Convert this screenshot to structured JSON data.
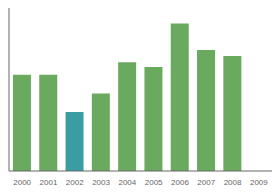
{
  "chart_data": {
    "type": "bar",
    "categories": [
      "2000",
      "2001",
      "2002",
      "2003",
      "2004",
      "2005",
      "2006",
      "2007",
      "2008",
      "2009"
    ],
    "values": [
      62,
      62,
      38,
      50,
      70,
      67,
      95,
      78,
      74,
      0
    ],
    "colors": [
      "#6aaa5e",
      "#6aaa5e",
      "#3a9da3",
      "#6aaa5e",
      "#6aaa5e",
      "#6aaa5e",
      "#6aaa5e",
      "#6aaa5e",
      "#6aaa5e",
      "#6aaa5e"
    ],
    "ylim": [
      0,
      105
    ],
    "yticks": [],
    "grid": false,
    "tick_labels": "x"
  }
}
